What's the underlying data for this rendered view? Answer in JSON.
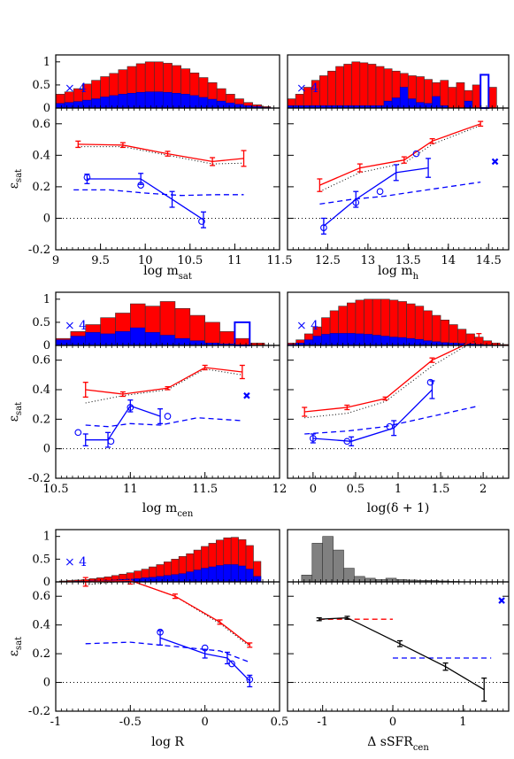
{
  "colors": {
    "red_series": "#ff0000",
    "blue_series": "#0000ff",
    "gray_hist": "#808080",
    "black_series": "#000000"
  },
  "chart_data": [
    {
      "panel": "log m_sat",
      "type": "line",
      "xlabel": "log m",
      "xlabel_sub": "sat",
      "ylabel": "ε",
      "ylabel_sub": "sat",
      "xlim": [
        9,
        11.5
      ],
      "ylim": [
        -0.2,
        0.7
      ],
      "xticks": [
        "9",
        "9.5",
        "10",
        "10.5",
        "11",
        "11.5"
      ],
      "yticks": [
        "-0.2",
        "0",
        "0.2",
        "0.4",
        "0.6"
      ],
      "hist": {
        "multiplier_label": "× 4",
        "yticks": [
          "0",
          "0.5",
          "1"
        ],
        "bins": [
          9.05,
          9.15,
          9.25,
          9.35,
          9.45,
          9.55,
          9.65,
          9.75,
          9.85,
          9.95,
          10.05,
          10.15,
          10.25,
          10.35,
          10.45,
          10.55,
          10.65,
          10.75,
          10.85,
          10.95,
          11.05,
          11.15,
          11.25,
          11.35
        ],
        "red": [
          0.3,
          0.35,
          0.42,
          0.52,
          0.6,
          0.68,
          0.75,
          0.83,
          0.9,
          0.96,
          1.0,
          1.0,
          0.97,
          0.92,
          0.85,
          0.76,
          0.66,
          0.55,
          0.42,
          0.3,
          0.2,
          0.12,
          0.07,
          0.03
        ],
        "blue": [
          0.1,
          0.12,
          0.14,
          0.17,
          0.2,
          0.24,
          0.27,
          0.3,
          0.32,
          0.34,
          0.35,
          0.35,
          0.34,
          0.32,
          0.3,
          0.27,
          0.23,
          0.19,
          0.15,
          0.11,
          0.08,
          0.05,
          0.03,
          0.01
        ],
        "outline_bins": []
      },
      "series": [
        {
          "color": "red",
          "x": [
            9.25,
            9.75,
            10.25,
            10.75,
            11.1
          ],
          "y": [
            0.47,
            0.465,
            0.41,
            0.36,
            0.38
          ],
          "err": [
            0.02,
            0.015,
            0.015,
            0.025,
            0.05
          ]
        },
        {
          "color": "blue",
          "x": [
            9.35,
            9.95,
            10.3,
            10.65
          ],
          "y": [
            0.25,
            0.25,
            0.12,
            -0.01
          ],
          "err": [
            0.03,
            0.035,
            0.05,
            0.05
          ]
        }
      ],
      "circles": {
        "x": [
          9.35,
          9.95,
          10.63
        ],
        "y": [
          0.26,
          0.21,
          -0.02
        ]
      },
      "red_dotted": {
        "x": [
          9.25,
          9.75,
          10.25,
          10.75,
          11.1
        ],
        "y": [
          0.455,
          0.455,
          0.4,
          0.345,
          0.35
        ]
      },
      "blue_dashed": {
        "x": [
          9.2,
          9.6,
          10.0,
          10.4,
          10.8,
          11.1
        ],
        "y": [
          0.18,
          0.18,
          0.16,
          0.145,
          0.15,
          0.15
        ]
      },
      "crosses": []
    },
    {
      "panel": "log m_h",
      "type": "line",
      "xlabel": "log m",
      "xlabel_sub": "h",
      "ylabel": "",
      "ylabel_sub": "",
      "xlim": [
        12,
        14.75
      ],
      "ylim": [
        -0.2,
        0.7
      ],
      "xticks": [
        "12.5",
        "13",
        "13.5",
        "14",
        "14.5"
      ],
      "yticks": [],
      "hist": {
        "multiplier_label": "× 4",
        "yticks": [],
        "bins": [
          12.05,
          12.15,
          12.25,
          12.35,
          12.45,
          12.55,
          12.65,
          12.75,
          12.85,
          12.95,
          13.05,
          13.15,
          13.25,
          13.35,
          13.45,
          13.55,
          13.65,
          13.75,
          13.85,
          13.95,
          14.05,
          14.15,
          14.25,
          14.35,
          14.45,
          14.55,
          14.65
        ],
        "red": [
          0.2,
          0.3,
          0.45,
          0.6,
          0.7,
          0.8,
          0.9,
          0.95,
          1.0,
          0.98,
          0.95,
          0.9,
          0.85,
          0.8,
          0.75,
          0.7,
          0.68,
          0.62,
          0.55,
          0.6,
          0.45,
          0.55,
          0.38,
          0.5,
          0.0,
          0.45,
          0.0
        ],
        "blue": [
          0.05,
          0.05,
          0.05,
          0.05,
          0.05,
          0.05,
          0.05,
          0.05,
          0.05,
          0.05,
          0.05,
          0.05,
          0.15,
          0.22,
          0.45,
          0.2,
          0.12,
          0.1,
          0.25,
          0.05,
          0.0,
          0.0,
          0.15,
          0.0,
          0.0,
          0.0,
          0.0
        ],
        "outline_bins": [
          {
            "x": 14.45,
            "h": 0.72,
            "color": "blue"
          }
        ]
      },
      "series": [
        {
          "color": "red",
          "x": [
            12.4,
            12.9,
            13.45,
            13.8,
            14.4
          ],
          "y": [
            0.21,
            0.32,
            0.37,
            0.49,
            0.6
          ],
          "err": [
            0.04,
            0.025,
            0.02,
            0.015,
            0.015
          ]
        },
        {
          "color": "blue",
          "x": [
            12.45,
            12.85,
            13.35,
            13.75
          ],
          "y": [
            -0.05,
            0.12,
            0.29,
            0.32
          ],
          "err": [
            0.05,
            0.05,
            0.05,
            0.06
          ]
        }
      ],
      "circles": {
        "x": [
          12.45,
          12.85,
          13.15,
          13.6
        ],
        "y": [
          -0.06,
          0.1,
          0.17,
          0.41
        ]
      },
      "red_dotted": {
        "x": [
          12.4,
          12.9,
          13.45,
          13.8,
          14.4
        ],
        "y": [
          0.17,
          0.29,
          0.35,
          0.47,
          0.59
        ]
      },
      "blue_dashed": {
        "x": [
          12.4,
          12.8,
          13.2,
          13.6,
          14.0,
          14.4
        ],
        "y": [
          0.09,
          0.12,
          0.14,
          0.17,
          0.2,
          0.23
        ]
      },
      "crosses": [
        {
          "x": 14.58,
          "y": 0.36,
          "color": "blue"
        }
      ]
    },
    {
      "panel": "log m_cen",
      "type": "line",
      "xlabel": "log m",
      "xlabel_sub": "cen",
      "ylabel": "ε",
      "ylabel_sub": "sat",
      "xlim": [
        10.5,
        12
      ],
      "ylim": [
        -0.2,
        0.7
      ],
      "xticks": [
        "10.5",
        "11",
        "11.5",
        "12"
      ],
      "yticks": [
        "-0.2",
        "0",
        "0.2",
        "0.4",
        "0.6"
      ],
      "hist": {
        "multiplier_label": "× 4",
        "yticks": [
          "0",
          "0.5",
          "1"
        ],
        "bins": [
          10.55,
          10.65,
          10.75,
          10.85,
          10.95,
          11.05,
          11.15,
          11.25,
          11.35,
          11.45,
          11.55,
          11.65,
          11.75,
          11.85
        ],
        "red": [
          0.15,
          0.3,
          0.45,
          0.6,
          0.7,
          0.9,
          0.85,
          0.95,
          0.8,
          0.65,
          0.5,
          0.3,
          0.15,
          0.05
        ],
        "blue": [
          0.12,
          0.2,
          0.28,
          0.25,
          0.3,
          0.38,
          0.28,
          0.22,
          0.15,
          0.1,
          0.05,
          0.03,
          0.0,
          0.0
        ],
        "outline_bins": [
          {
            "x": 11.75,
            "h": 0.5,
            "color": "blue"
          }
        ]
      },
      "series": [
        {
          "color": "red",
          "x": [
            10.7,
            10.95,
            11.25,
            11.5,
            11.75
          ],
          "y": [
            0.4,
            0.37,
            0.41,
            0.55,
            0.52
          ],
          "err": [
            0.05,
            0.015,
            0.01,
            0.015,
            0.045
          ]
        },
        {
          "color": "blue",
          "x": [
            10.7,
            10.85,
            11.0,
            11.2
          ],
          "y": [
            0.06,
            0.06,
            0.29,
            0.22
          ],
          "err": [
            0.04,
            0.05,
            0.04,
            0.05
          ]
        }
      ],
      "circles": {
        "x": [
          10.65,
          10.87,
          11.0,
          11.25
        ],
        "y": [
          0.11,
          0.05,
          0.28,
          0.22
        ]
      },
      "red_dotted": {
        "x": [
          10.7,
          10.95,
          11.25,
          11.5,
          11.75
        ],
        "y": [
          0.31,
          0.36,
          0.4,
          0.54,
          0.5
        ]
      },
      "blue_dashed": {
        "x": [
          10.7,
          10.85,
          11.0,
          11.2,
          11.45,
          11.75
        ],
        "y": [
          0.16,
          0.15,
          0.17,
          0.16,
          0.21,
          0.19
        ]
      },
      "crosses": [
        {
          "x": 11.78,
          "y": 0.36,
          "color": "blue"
        }
      ]
    },
    {
      "panel": "log(δ + 1)",
      "type": "line",
      "xlabel": "log(δ + 1)",
      "xlabel_sub": "",
      "ylabel": "",
      "ylabel_sub": "",
      "xlim": [
        -0.3,
        2.3
      ],
      "ylim": [
        -0.2,
        0.7
      ],
      "xticks": [
        "0",
        "0.5",
        "1",
        "1.5",
        "2"
      ],
      "yticks": [],
      "hist": {
        "multiplier_label": "× 4",
        "yticks": [],
        "bins": [
          -0.25,
          -0.15,
          -0.05,
          0.05,
          0.15,
          0.25,
          0.35,
          0.45,
          0.55,
          0.65,
          0.75,
          0.85,
          0.95,
          1.05,
          1.15,
          1.25,
          1.35,
          1.45,
          1.55,
          1.65,
          1.75,
          1.85,
          1.95,
          2.05,
          2.15,
          2.25
        ],
        "red": [
          0.05,
          0.12,
          0.25,
          0.4,
          0.6,
          0.75,
          0.85,
          0.92,
          0.98,
          1.0,
          1.0,
          1.0,
          0.98,
          0.95,
          0.9,
          0.85,
          0.75,
          0.65,
          0.55,
          0.45,
          0.35,
          0.25,
          0.18,
          0.1,
          0.05,
          0.02
        ],
        "blue": [
          0.02,
          0.05,
          0.12,
          0.2,
          0.24,
          0.26,
          0.26,
          0.26,
          0.25,
          0.24,
          0.22,
          0.2,
          0.18,
          0.17,
          0.15,
          0.13,
          0.1,
          0.08,
          0.06,
          0.05,
          0.04,
          0.03,
          0.02,
          0.01,
          0.0,
          0.0
        ],
        "outline_bins": []
      },
      "series": [
        {
          "color": "red",
          "x": [
            -0.1,
            0.4,
            0.85,
            1.4,
            1.95
          ],
          "y": [
            0.25,
            0.28,
            0.34,
            0.6,
            0.75
          ],
          "err": [
            0.03,
            0.015,
            0.01,
            0.015,
            0.03
          ]
        },
        {
          "color": "blue",
          "x": [
            0.0,
            0.45,
            0.95,
            1.4
          ],
          "y": [
            0.07,
            0.05,
            0.14,
            0.4
          ],
          "err": [
            0.03,
            0.03,
            0.05,
            0.06
          ]
        }
      ],
      "circles": {
        "x": [
          0.0,
          0.4,
          0.9,
          1.38
        ],
        "y": [
          0.07,
          0.05,
          0.15,
          0.45
        ]
      },
      "red_dotted": {
        "x": [
          -0.1,
          0.4,
          0.85,
          1.4,
          1.95
        ],
        "y": [
          0.21,
          0.24,
          0.32,
          0.56,
          0.75
        ]
      },
      "blue_dashed": {
        "x": [
          -0.1,
          0.4,
          0.85,
          1.4,
          1.95
        ],
        "y": [
          0.1,
          0.12,
          0.15,
          0.22,
          0.29
        ]
      },
      "crosses": []
    },
    {
      "panel": "log R",
      "type": "line",
      "xlabel": "log R",
      "xlabel_sub": "",
      "ylabel": "ε",
      "ylabel_sub": "sat",
      "xlim": [
        -1,
        0.5
      ],
      "ylim": [
        -0.2,
        0.7
      ],
      "xticks": [
        "-1",
        "-0.5",
        "0",
        "0.5"
      ],
      "yticks": [
        "-0.2",
        "0",
        "0.2",
        "0.4",
        "0.6"
      ],
      "hist": {
        "multiplier_label": "× 4",
        "yticks": [
          "0",
          "0.5",
          "1"
        ],
        "bins": [
          -0.95,
          -0.9,
          -0.85,
          -0.8,
          -0.75,
          -0.7,
          -0.65,
          -0.6,
          -0.55,
          -0.5,
          -0.45,
          -0.4,
          -0.35,
          -0.3,
          -0.25,
          -0.2,
          -0.15,
          -0.1,
          -0.05,
          0.0,
          0.05,
          0.1,
          0.15,
          0.2,
          0.25,
          0.3,
          0.35
        ],
        "red": [
          0.02,
          0.03,
          0.04,
          0.05,
          0.07,
          0.09,
          0.11,
          0.14,
          0.17,
          0.2,
          0.24,
          0.28,
          0.33,
          0.38,
          0.44,
          0.5,
          0.56,
          0.62,
          0.7,
          0.78,
          0.85,
          0.92,
          0.97,
          0.98,
          0.93,
          0.8,
          0.45
        ],
        "blue": [
          0.0,
          0.0,
          0.01,
          0.01,
          0.02,
          0.02,
          0.03,
          0.04,
          0.05,
          0.06,
          0.07,
          0.09,
          0.1,
          0.12,
          0.14,
          0.16,
          0.18,
          0.22,
          0.26,
          0.3,
          0.33,
          0.36,
          0.38,
          0.38,
          0.35,
          0.28,
          0.12
        ],
        "outline_bins": []
      },
      "series": [
        {
          "color": "red",
          "x": [
            -0.8,
            -0.5,
            -0.2,
            0.1,
            0.3
          ],
          "y": [
            0.7,
            0.71,
            0.6,
            0.42,
            0.26
          ],
          "err": [
            0.03,
            0.025,
            0.015,
            0.015,
            0.015
          ]
        },
        {
          "color": "blue",
          "x": [
            -0.3,
            0.0,
            0.15,
            0.3
          ],
          "y": [
            0.31,
            0.2,
            0.17,
            0.01
          ],
          "err": [
            0.05,
            0.03,
            0.04,
            0.04
          ]
        }
      ],
      "circles": {
        "x": [
          -0.3,
          0.0,
          0.18,
          0.3
        ],
        "y": [
          0.35,
          0.24,
          0.13,
          0.02
        ]
      },
      "red_dotted": {
        "x": [
          -0.8,
          -0.5,
          -0.2,
          0.1,
          0.3
        ],
        "y": [
          0.68,
          0.71,
          0.6,
          0.41,
          0.25
        ]
      },
      "blue_dashed": {
        "x": [
          -0.8,
          -0.5,
          -0.2,
          0.1,
          0.3
        ],
        "y": [
          0.27,
          0.28,
          0.25,
          0.22,
          0.14
        ]
      },
      "crosses": []
    },
    {
      "panel": "Δ sSFR_cen",
      "type": "line",
      "xlabel": "Δ sSFR",
      "xlabel_sub": "cen",
      "ylabel": "",
      "ylabel_sub": "",
      "xlim": [
        -1.5,
        1.65
      ],
      "ylim": [
        -0.2,
        0.7
      ],
      "xticks": [
        "-1",
        "0",
        "1"
      ],
      "yticks": [],
      "hist": {
        "multiplier_label": "",
        "yticks": [],
        "bins": [
          -1.225,
          -1.075,
          -0.925,
          -0.775,
          -0.625,
          -0.475,
          -0.325,
          -0.175,
          -0.025,
          0.125,
          0.275,
          0.425,
          0.575,
          0.725,
          0.875
        ],
        "gray": [
          0.15,
          0.85,
          1.0,
          0.7,
          0.3,
          0.12,
          0.08,
          0.05,
          0.08,
          0.05,
          0.04,
          0.03,
          0.03,
          0.02,
          0.01
        ],
        "red": [],
        "blue": [],
        "outline_bins": []
      },
      "series": [
        {
          "color": "black",
          "x": [
            -1.05,
            -0.65,
            0.1,
            0.75,
            1.3
          ],
          "y": [
            0.44,
            0.45,
            0.27,
            0.11,
            -0.05
          ],
          "err": [
            0.01,
            0.01,
            0.02,
            0.025,
            0.08
          ]
        }
      ],
      "circles": {
        "x": [],
        "y": []
      },
      "red_dashed_seg": {
        "x": [
          -1.05,
          0.0
        ],
        "y": [
          0.44,
          0.44
        ]
      },
      "blue_dashed_seg": {
        "x": [
          0.0,
          1.4
        ],
        "y": [
          0.17,
          0.17
        ]
      },
      "crosses": [
        {
          "x": 1.55,
          "y": 0.57,
          "color": "blue"
        }
      ]
    }
  ]
}
